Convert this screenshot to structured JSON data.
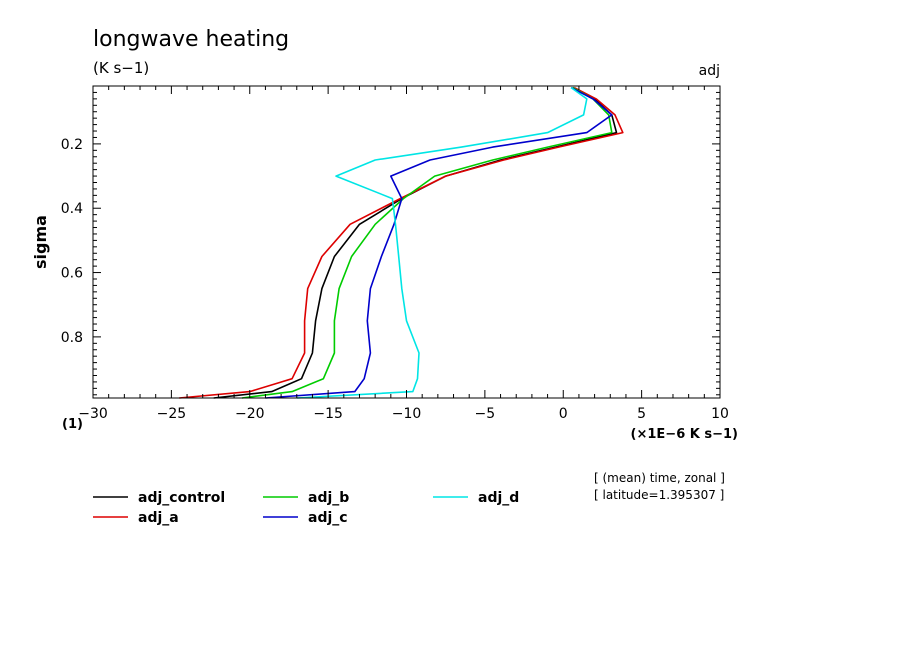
{
  "chart_data": {
    "type": "line",
    "title": "longwave heating",
    "units_label": "(K s−1)",
    "corner_label": "adj",
    "ylabel": "sigma",
    "x_multiplier_label": "(×1E−6 K s−1)",
    "corner_index_label": "(1)",
    "xlim": [
      -30,
      10
    ],
    "ylim": [
      0.02,
      0.99
    ],
    "y_inverted": true,
    "x_ticks": [
      -30,
      -25,
      -20,
      -15,
      -10,
      -5,
      0,
      5,
      10
    ],
    "x_tick_labels": [
      "−30",
      "−25",
      "−20",
      "−15",
      "−10",
      "−5",
      "0",
      "5",
      "10"
    ],
    "y_ticks": [
      0.2,
      0.4,
      0.6,
      0.8
    ],
    "y_tick_labels": [
      "0.2",
      "0.4",
      "0.6",
      "0.8"
    ],
    "info_lines": [
      "[ (mean) time, zonal ]",
      "[ latitude=1.395307 ]"
    ],
    "sigma": [
      0.025,
      0.06,
      0.11,
      0.165,
      0.21,
      0.25,
      0.3,
      0.37,
      0.45,
      0.55,
      0.65,
      0.75,
      0.85,
      0.93,
      0.97,
      0.99
    ],
    "series": [
      {
        "name": "adj_control",
        "color": "#000000",
        "values": [
          0.6,
          2.0,
          3.1,
          3.4,
          -0.5,
          -4.0,
          -7.5,
          -10.3,
          -13.0,
          -14.6,
          -15.4,
          -15.8,
          -16.0,
          -16.7,
          -18.6,
          -22.3
        ]
      },
      {
        "name": "adj_a",
        "color": "#dd0000",
        "values": [
          0.7,
          2.1,
          3.3,
          3.8,
          -0.3,
          -3.8,
          -7.5,
          -10.4,
          -13.6,
          -15.4,
          -16.3,
          -16.5,
          -16.5,
          -17.3,
          -20.0,
          -24.5
        ]
      },
      {
        "name": "adj_b",
        "color": "#00cc00",
        "values": [
          0.6,
          1.9,
          2.9,
          3.1,
          -1.0,
          -4.5,
          -8.2,
          -10.2,
          -12.0,
          -13.5,
          -14.3,
          -14.6,
          -14.6,
          -15.3,
          -17.3,
          -20.5
        ]
      },
      {
        "name": "adj_c",
        "color": "#0000cc",
        "values": [
          0.5,
          1.9,
          3.1,
          1.5,
          -4.5,
          -8.5,
          -11.0,
          -10.3,
          -10.8,
          -11.6,
          -12.3,
          -12.5,
          -12.3,
          -12.7,
          -13.3,
          -19.0
        ]
      },
      {
        "name": "adj_d",
        "color": "#00e5e5",
        "values": [
          0.5,
          1.5,
          1.3,
          -1.0,
          -6.5,
          -12.0,
          -14.5,
          -10.9,
          -10.7,
          -10.5,
          -10.3,
          -10.0,
          -9.2,
          -9.3,
          -9.6,
          -17.0
        ]
      }
    ]
  }
}
